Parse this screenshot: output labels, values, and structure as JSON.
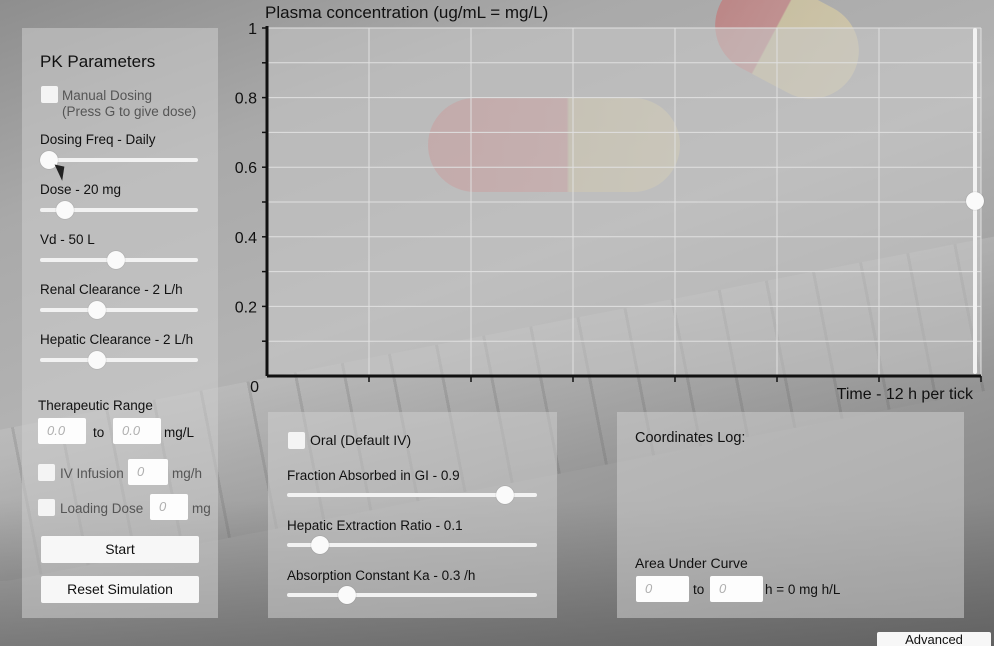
{
  "pk_panel": {
    "title": "PK Parameters",
    "manual_dosing_label": "Manual Dosing",
    "manual_dosing_hint": "(Press G to give dose)",
    "manual_dosing_checked": false,
    "sliders": [
      {
        "label": "Dosing Freq - Daily",
        "level": 0.06
      },
      {
        "label": "Dose - 20 mg",
        "level": 0.16
      },
      {
        "label": "Vd - 50 L",
        "level": 0.48
      },
      {
        "label": "Renal Clearance - 2 L/h",
        "level": 0.36
      },
      {
        "label": "Hepatic Clearance - 2 L/h",
        "level": 0.36
      }
    ],
    "therapeutic_range_label": "Therapeutic Range",
    "range_low_placeholder": "0.0",
    "range_to": "to",
    "range_high_placeholder": "0.0",
    "range_unit": "mg/L",
    "iv_infusion_label": "IV Infusion",
    "iv_infusion_placeholder": "0",
    "iv_infusion_unit": "mg/h",
    "loading_dose_label": "Loading Dose",
    "loading_dose_placeholder": "0",
    "loading_dose_unit": "mg",
    "start_label": "Start",
    "reset_label": "Reset Simulation"
  },
  "oral_panel": {
    "oral_label": "Oral (Default IV)",
    "oral_checked": false,
    "sliders": [
      {
        "label": "Fraction Absorbed in GI - 0.9",
        "level": 0.87
      },
      {
        "label": "Hepatic Extraction Ratio - 0.1",
        "level": 0.13
      },
      {
        "label": "Absorption Constant Ka - 0.3 /h",
        "level": 0.24
      }
    ]
  },
  "log_panel": {
    "title": "Coordinates Log:",
    "auc_label": "Area Under Curve",
    "auc_from_placeholder": "0",
    "auc_to": "to",
    "auc_to_placeholder": "0",
    "auc_result": "h = 0 mg h/L"
  },
  "advanced_label": "Advanced",
  "y_scale_level": 0.5,
  "colors": {
    "panel": "#cdcdcd",
    "plot_area": "#c8c8c8",
    "axis": "#111111",
    "grid": "#e0e0e0"
  },
  "chart_data": {
    "type": "line",
    "title": "Plasma concentration (ug/mL = mg/L)",
    "xlabel": "Time - 12 h per tick",
    "ylabel": "",
    "y_ticks": [
      "0",
      "0.2",
      "0.4",
      "0.6",
      "0.8",
      "1"
    ],
    "ylim": [
      0,
      1
    ],
    "x_ticks_count": 7,
    "grid": true,
    "series": []
  }
}
